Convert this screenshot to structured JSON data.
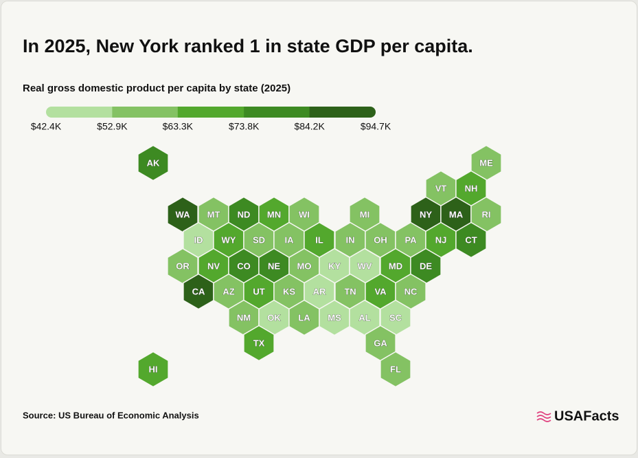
{
  "title": "In 2025, New York ranked 1 in state GDP per capita.",
  "subtitle": "Real gross domestic product per capita by state (2025)",
  "legend": {
    "colors": [
      "#b3e09f",
      "#84c263",
      "#53a82d",
      "#3d8a22",
      "#2d6119"
    ],
    "ticks": [
      {
        "value": 42400,
        "label": "$42.4K"
      },
      {
        "value": 52900,
        "label": "$52.9K"
      },
      {
        "value": 63300,
        "label": "$63.3K"
      },
      {
        "value": 73800,
        "label": "$73.8K"
      },
      {
        "value": 84200,
        "label": "$84.2K"
      },
      {
        "value": 94700,
        "label": "$94.7K"
      }
    ]
  },
  "states": [
    {
      "label": "AK",
      "color": "#3d8a22"
    },
    {
      "label": "ME",
      "color": "#84c263"
    },
    {
      "label": "VT",
      "color": "#84c263"
    },
    {
      "label": "NH",
      "color": "#53a82d"
    },
    {
      "label": "WA",
      "color": "#2d6119"
    },
    {
      "label": "MT",
      "color": "#84c263"
    },
    {
      "label": "ND",
      "color": "#3d8a22"
    },
    {
      "label": "MN",
      "color": "#53a82d"
    },
    {
      "label": "WI",
      "color": "#84c263"
    },
    {
      "label": "MI",
      "color": "#84c263"
    },
    {
      "label": "NY",
      "color": "#2d6119"
    },
    {
      "label": "MA",
      "color": "#2d6119"
    },
    {
      "label": "RI",
      "color": "#84c263"
    },
    {
      "label": "ID",
      "color": "#b3e09f"
    },
    {
      "label": "WY",
      "color": "#53a82d"
    },
    {
      "label": "SD",
      "color": "#84c263"
    },
    {
      "label": "IA",
      "color": "#84c263"
    },
    {
      "label": "IL",
      "color": "#53a82d"
    },
    {
      "label": "IN",
      "color": "#84c263"
    },
    {
      "label": "OH",
      "color": "#84c263"
    },
    {
      "label": "PA",
      "color": "#84c263"
    },
    {
      "label": "NJ",
      "color": "#53a82d"
    },
    {
      "label": "CT",
      "color": "#3d8a22"
    },
    {
      "label": "OR",
      "color": "#84c263"
    },
    {
      "label": "NV",
      "color": "#53a82d"
    },
    {
      "label": "CO",
      "color": "#3d8a22"
    },
    {
      "label": "NE",
      "color": "#3d8a22"
    },
    {
      "label": "MO",
      "color": "#84c263"
    },
    {
      "label": "KY",
      "color": "#b3e09f"
    },
    {
      "label": "WV",
      "color": "#b3e09f"
    },
    {
      "label": "MD",
      "color": "#53a82d"
    },
    {
      "label": "DE",
      "color": "#3d8a22"
    },
    {
      "label": "CA",
      "color": "#2d6119"
    },
    {
      "label": "AZ",
      "color": "#84c263"
    },
    {
      "label": "UT",
      "color": "#53a82d"
    },
    {
      "label": "KS",
      "color": "#84c263"
    },
    {
      "label": "AR",
      "color": "#b3e09f"
    },
    {
      "label": "TN",
      "color": "#84c263"
    },
    {
      "label": "VA",
      "color": "#53a82d"
    },
    {
      "label": "NC",
      "color": "#84c263"
    },
    {
      "label": "NM",
      "color": "#84c263"
    },
    {
      "label": "OK",
      "color": "#b3e09f"
    },
    {
      "label": "LA",
      "color": "#84c263"
    },
    {
      "label": "MS",
      "color": "#b3e09f"
    },
    {
      "label": "AL",
      "color": "#b3e09f"
    },
    {
      "label": "SC",
      "color": "#b3e09f"
    },
    {
      "label": "TX",
      "color": "#53a82d"
    },
    {
      "label": "GA",
      "color": "#84c263"
    },
    {
      "label": "HI",
      "color": "#53a82d"
    },
    {
      "label": "FL",
      "color": "#84c263"
    }
  ],
  "source": "Source: US Bureau of Economic Analysis",
  "logo": "USAFacts"
}
